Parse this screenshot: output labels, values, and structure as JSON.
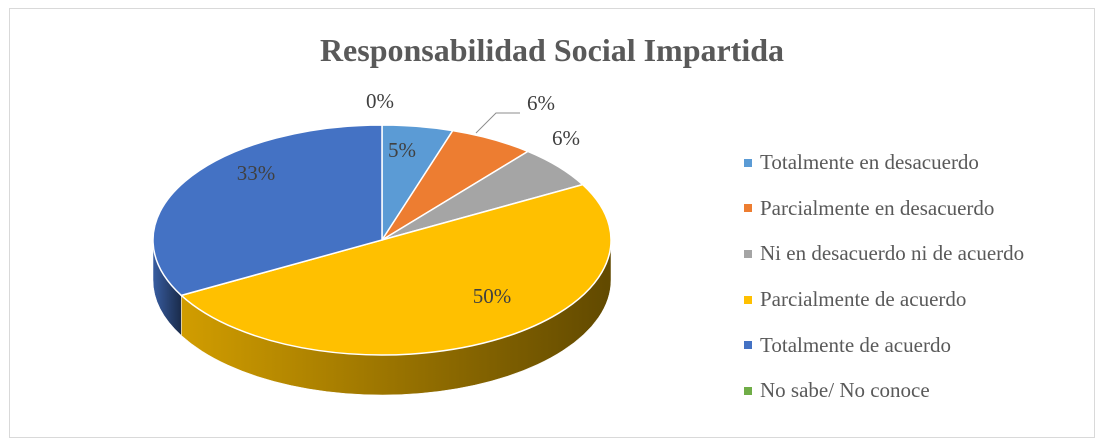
{
  "chart_data": {
    "type": "pie",
    "title": "Responsabilidad Social Impartida",
    "slices": [
      {
        "name": "Totalmente en desacuerdo",
        "value": 5,
        "label": "5%",
        "color": "#5b9bd5"
      },
      {
        "name": "Parcialmente en desacuerdo",
        "value": 6,
        "label": "6%",
        "color": "#ed7d31"
      },
      {
        "name": "Ni en desacuerdo ni de acuerdo",
        "value": 6,
        "label": "6%",
        "color": "#a5a5a5"
      },
      {
        "name": "Parcialmente de acuerdo",
        "value": 50,
        "label": "50%",
        "color": "#ffc000"
      },
      {
        "name": "Totalmente de acuerdo",
        "value": 33,
        "label": "33%",
        "color": "#4472c4"
      },
      {
        "name": "No sabe/   No conoce",
        "value": 0,
        "label": "0%",
        "color": "#70ad47"
      }
    ],
    "legend_position": "right"
  }
}
